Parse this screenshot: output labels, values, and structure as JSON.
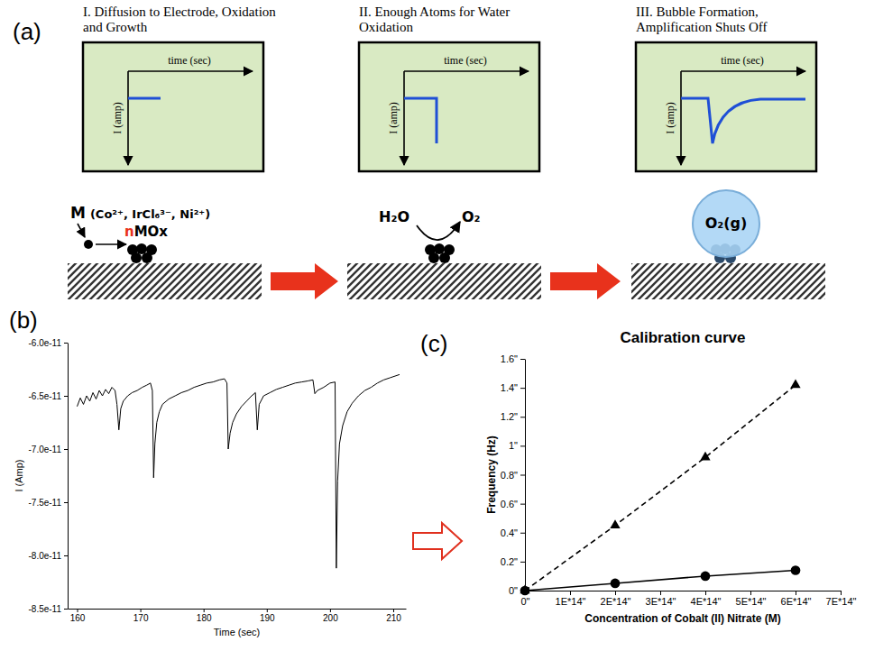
{
  "diagram": {
    "panel_label": "(a)",
    "steps": [
      {
        "title": "I. Diffusion to Electrode, Oxidation and Growth",
        "x_axis": "time (sec)",
        "y_axis": "I (amp)",
        "metal": "M",
        "metal_examples": "(Co²⁺, IrCl₆³⁻, Ni²⁺)",
        "nanoparticle": "nMOx"
      },
      {
        "title": "II. Enough Atoms for Water Oxidation",
        "x_axis": "time (sec)",
        "y_axis": "I (amp)",
        "reactant": "H₂O",
        "product": "O₂"
      },
      {
        "title": "III. Bubble Formation, Amplification Shuts Off",
        "x_axis": "time (sec)",
        "y_axis": "I (amp)",
        "bubble": "O₂(g)"
      }
    ]
  },
  "chart_data": [
    {
      "type": "line",
      "panel_label": "(b)",
      "x_label": "Time (sec)",
      "y_label": "I (Amp)",
      "x": [
        160,
        160.5,
        161,
        161.5,
        162,
        162.5,
        163,
        163.5,
        164,
        164.5,
        165,
        165.5,
        166,
        166.3,
        166.6,
        166.9,
        167.3,
        168,
        168.7,
        169.5,
        170.3,
        171,
        171.6,
        171.9,
        172.1,
        172.3,
        172.6,
        173,
        173.5,
        174.5,
        175.5,
        176.5,
        177.5,
        178.5,
        179.5,
        180.5,
        181.5,
        182.5,
        183.3,
        183.7,
        183.9,
        184.2,
        184.6,
        185.2,
        186,
        186.8,
        187.6,
        188.2,
        188.5,
        188.8,
        189.5,
        190.5,
        191.5,
        192.5,
        193.5,
        194.5,
        195.5,
        196.5,
        197.3,
        197.6,
        198,
        199,
        200,
        200.8,
        201,
        201.2,
        201.5,
        202,
        202.7,
        203.5,
        204.5,
        205.5,
        206.5,
        207.5,
        208.5,
        209.5,
        210,
        211
      ],
      "series": [
        {
          "color": "#000000",
          "values": [
            -6.6e-11,
            -6.52e-11,
            -6.58e-11,
            -6.5e-11,
            -6.55e-11,
            -6.47e-11,
            -6.53e-11,
            -6.45e-11,
            -6.5e-11,
            -6.44e-11,
            -6.48e-11,
            -6.42e-11,
            -6.45e-11,
            -6.58e-11,
            -6.82e-11,
            -6.62e-11,
            -6.55e-11,
            -6.5e-11,
            -6.47e-11,
            -6.45e-11,
            -6.42e-11,
            -6.4e-11,
            -6.38e-11,
            -6.45e-11,
            -7.27e-11,
            -6.95e-11,
            -6.75e-11,
            -6.65e-11,
            -6.58e-11,
            -6.53e-11,
            -6.5e-11,
            -6.47e-11,
            -6.45e-11,
            -6.42e-11,
            -6.4e-11,
            -6.38e-11,
            -6.37e-11,
            -6.35e-11,
            -6.34e-11,
            -6.38e-11,
            -7e-11,
            -6.85e-11,
            -6.75e-11,
            -6.67e-11,
            -6.6e-11,
            -6.55e-11,
            -6.5e-11,
            -6.47e-11,
            -6.82e-11,
            -6.58e-11,
            -6.5e-11,
            -6.47e-11,
            -6.44e-11,
            -6.42e-11,
            -6.4e-11,
            -6.38e-11,
            -6.37e-11,
            -6.36e-11,
            -6.35e-11,
            -6.48e-11,
            -6.45e-11,
            -6.42e-11,
            -6.38e-11,
            -6.37e-11,
            -8.12e-11,
            -7.3e-11,
            -6.95e-11,
            -6.78e-11,
            -6.65e-11,
            -6.57e-11,
            -6.5e-11,
            -6.45e-11,
            -6.42e-11,
            -6.38e-11,
            -6.35e-11,
            -6.33e-11,
            -6.32e-11,
            -6.3e-11
          ]
        }
      ],
      "xlim": [
        158.5,
        212
      ],
      "xticks": [
        160,
        170,
        180,
        190,
        200,
        210
      ],
      "ylim": [
        -8.5e-11,
        -6e-11
      ],
      "yticks": [
        {
          "value": -6e-11,
          "label": "-6.0e-11"
        },
        {
          "value": -6.5e-11,
          "label": "-6.5e-11"
        },
        {
          "value": -7e-11,
          "label": "-7.0e-11"
        },
        {
          "value": -7.5e-11,
          "label": "-7.5e-11"
        },
        {
          "value": -8e-11,
          "label": "-8.0e-11"
        },
        {
          "value": -8.5e-11,
          "label": "-8.5e-11"
        }
      ]
    },
    {
      "type": "line",
      "panel_label": "(c)",
      "title": "Calibration curve",
      "x_label": "Concentration of Cobalt (II) Nitrate (M)",
      "y_label": "Frequency (Hz)",
      "x": [
        0,
        2e-14,
        4e-14,
        6e-14
      ],
      "series": [
        {
          "color": "#000000",
          "marker": "triangle",
          "line_style": "dashed",
          "values": [
            0,
            0.45,
            0.92,
            1.42
          ]
        },
        {
          "color": "#000000",
          "marker": "circle",
          "line_style": "solid",
          "values": [
            0,
            0.05,
            0.1,
            0.14
          ]
        }
      ],
      "xlim": [
        0,
        7e-14
      ],
      "xticks": [
        {
          "value": 0,
          "label": "0\""
        },
        {
          "value": 1e-14,
          "label": "1E*14\""
        },
        {
          "value": 2e-14,
          "label": "2E*14\""
        },
        {
          "value": 3e-14,
          "label": "3E*14\""
        },
        {
          "value": 4e-14,
          "label": "4E*14\""
        },
        {
          "value": 5e-14,
          "label": "5E*14\""
        },
        {
          "value": 6e-14,
          "label": "6E*14\""
        },
        {
          "value": 7e-14,
          "label": "7E*14\""
        }
      ],
      "ylim": [
        0,
        1.6
      ],
      "yticks": [
        {
          "value": 0,
          "label": "0\""
        },
        {
          "value": 0.2,
          "label": "0.2\""
        },
        {
          "value": 0.4,
          "label": "0.4\""
        },
        {
          "value": 0.6,
          "label": "0.6\""
        },
        {
          "value": 0.8,
          "label": "0.8\""
        },
        {
          "value": 1,
          "label": "1\""
        },
        {
          "value": 1.2,
          "label": "1.2\""
        },
        {
          "value": 1.4,
          "label": "1.4\""
        },
        {
          "value": 1.6,
          "label": "1.6\""
        }
      ]
    }
  ]
}
